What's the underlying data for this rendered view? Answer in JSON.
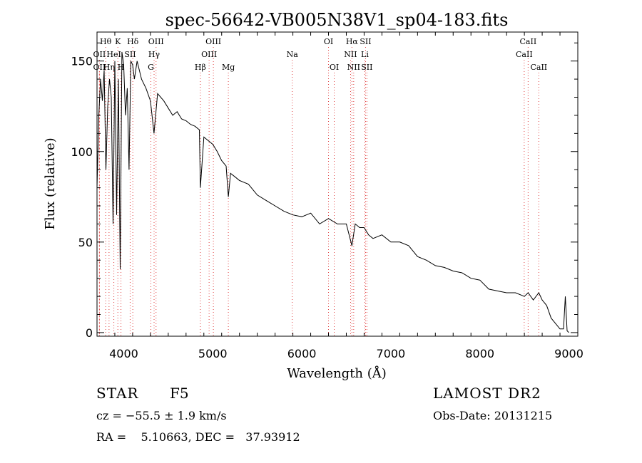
{
  "chart_data": {
    "type": "line",
    "title": "spec-56642-VB005N38V1_sp04-183.fits",
    "xlabel": "Wavelength (Å)",
    "ylabel": "Flux (relative)",
    "xlim": [
      3700,
      9100
    ],
    "ylim": [
      -2,
      166
    ],
    "xticks": [
      4000,
      5000,
      6000,
      7000,
      8000,
      9000
    ],
    "yticks": [
      0,
      50,
      100,
      150
    ],
    "grid": false,
    "series": [
      {
        "x": [
          3700,
          3720,
          3740,
          3760,
          3780,
          3800,
          3820,
          3840,
          3860,
          3880,
          3900,
          3920,
          3940,
          3960,
          3980,
          4000,
          4020,
          4040,
          4060,
          4080,
          4100,
          4120,
          4150,
          4200,
          4250,
          4300,
          4340,
          4380,
          4450,
          4500,
          4550,
          4600,
          4650,
          4700,
          4750,
          4800,
          4850,
          4861,
          4900,
          4950,
          5000,
          5050,
          5100,
          5150,
          5175,
          5200,
          5250,
          5300,
          5400,
          5500,
          5600,
          5700,
          5800,
          5900,
          6000,
          6100,
          6200,
          6300,
          6400,
          6500,
          6563,
          6600,
          6650,
          6700,
          6750,
          6800,
          6900,
          7000,
          7100,
          7200,
          7300,
          7400,
          7500,
          7600,
          7700,
          7800,
          7900,
          8000,
          8100,
          8200,
          8300,
          8400,
          8500,
          8542,
          8600,
          8662,
          8700,
          8750,
          8800,
          8850,
          8900,
          8940,
          8960,
          8980,
          9000
        ],
        "y": [
          80,
          120,
          140,
          128,
          145,
          90,
          125,
          140,
          130,
          60,
          150,
          65,
          140,
          35,
          155,
          148,
          120,
          135,
          90,
          150,
          148,
          140,
          150,
          140,
          135,
          128,
          110,
          132,
          128,
          124,
          120,
          122,
          118,
          117,
          115,
          114,
          112,
          80,
          108,
          106,
          104,
          100,
          95,
          92,
          75,
          88,
          86,
          84,
          82,
          76,
          73,
          70,
          67,
          65,
          64,
          66,
          60,
          63,
          60,
          60,
          48,
          60,
          58,
          58,
          54,
          52,
          54,
          50,
          50,
          48,
          42,
          40,
          37,
          36,
          34,
          33,
          30,
          29,
          24,
          23,
          22,
          22,
          20,
          22,
          18,
          22,
          18,
          15,
          8,
          5,
          2,
          2,
          20,
          1,
          0
        ]
      }
    ],
    "lines": [
      {
        "label": "Hθ",
        "x": 3797,
        "row": 0
      },
      {
        "label": "OII",
        "x": 3727,
        "row": 1
      },
      {
        "label": "OII",
        "x": 3727,
        "row": 2
      },
      {
        "label": "Hη",
        "x": 3835,
        "row": 2
      },
      {
        "label": "K",
        "x": 3934,
        "row": 0
      },
      {
        "label": "HeI",
        "x": 3889,
        "row": 1
      },
      {
        "label": "H",
        "x": 3969,
        "row": 2
      },
      {
        "label": "SII",
        "x": 4072,
        "row": 1
      },
      {
        "label": "Hδ",
        "x": 4102,
        "row": 0
      },
      {
        "label": "OIII",
        "x": 4363,
        "row": 0
      },
      {
        "label": "Hγ",
        "x": 4341,
        "row": 1
      },
      {
        "label": "G",
        "x": 4305,
        "row": 2
      },
      {
        "label": "Hβ",
        "x": 4861,
        "row": 2
      },
      {
        "label": "OIII",
        "x": 5007,
        "row": 0
      },
      {
        "label": "OIII",
        "x": 4959,
        "row": 1
      },
      {
        "label": "Mg",
        "x": 5175,
        "row": 2
      },
      {
        "label": "Na",
        "x": 5893,
        "row": 1
      },
      {
        "label": "OI",
        "x": 6300,
        "row": 0
      },
      {
        "label": "OI",
        "x": 6364,
        "row": 2
      },
      {
        "label": "Hα",
        "x": 6563,
        "row": 0
      },
      {
        "label": "SII",
        "x": 6716,
        "row": 0
      },
      {
        "label": "NII",
        "x": 6548,
        "row": 1
      },
      {
        "label": "Li",
        "x": 6708,
        "row": 1
      },
      {
        "label": "NII",
        "x": 6583,
        "row": 2
      },
      {
        "label": "SII",
        "x": 6731,
        "row": 2
      },
      {
        "label": "CaII",
        "x": 8542,
        "row": 0
      },
      {
        "label": "CaII",
        "x": 8498,
        "row": 1
      },
      {
        "label": "CaII",
        "x": 8662,
        "row": 2
      }
    ]
  },
  "info": {
    "object_type": "STAR",
    "subclass": "F5",
    "survey": "LAMOST DR2",
    "redshift": "cz = −55.5 ± 1.9 km/s",
    "obs_date": "Obs-Date: 20131215",
    "coordinates": "RA =    5.10663, DEC =   37.93912"
  }
}
